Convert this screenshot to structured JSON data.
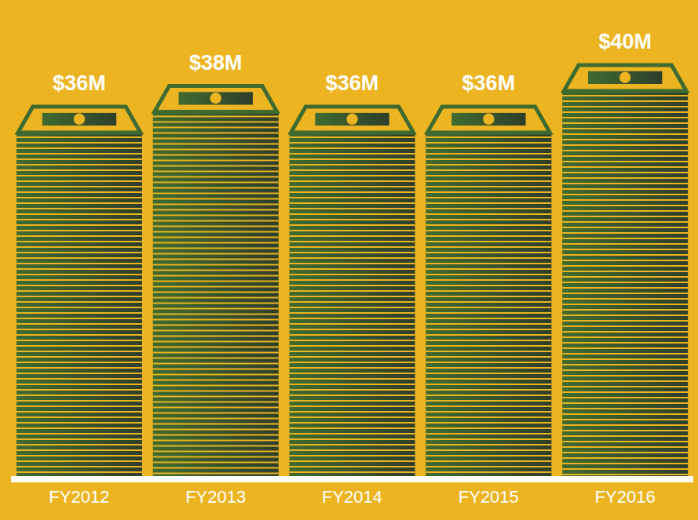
{
  "chart_data": {
    "type": "bar",
    "categories": [
      "FY2012",
      "FY2013",
      "FY2014",
      "FY2015",
      "FY2016"
    ],
    "values": [
      36,
      38,
      36,
      36,
      40
    ],
    "value_labels": [
      "$36M",
      "$38M",
      "$36M",
      "$36M",
      "$40M"
    ],
    "color": "#3f6b30",
    "ylim": [
      0,
      40
    ],
    "data_labels": true,
    "tick_labels": "x",
    "grid": false
  }
}
